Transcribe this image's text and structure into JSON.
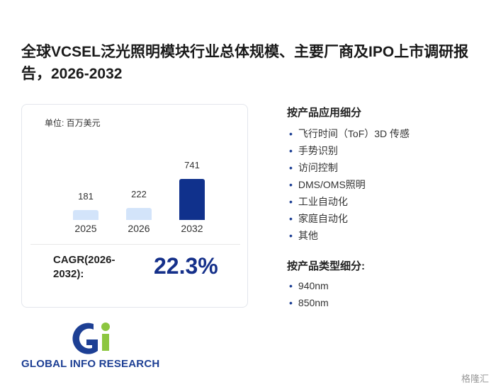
{
  "title": "全球VCSEL泛光照明模块行业总体规模、主要厂商及IPO上市调研报告，2026-2032",
  "card": {
    "unit": "单位: 百万美元",
    "chart": {
      "type": "bar",
      "categories": [
        "2025",
        "2026",
        "2032"
      ],
      "values": [
        181,
        222,
        741
      ],
      "colors": [
        "#d3e4fa",
        "#d3e4fa",
        "#10318c"
      ]
    },
    "cagr_label": "CAGR(2026-2032):",
    "cagr_value": "22.3%"
  },
  "sections": [
    {
      "heading": "按产品应用细分",
      "items": [
        "飞行时间（ToF）3D 传感",
        "手势识别",
        "访问控制",
        "DMS/OMS照明",
        "工业自动化",
        "家庭自动化",
        "其他"
      ]
    },
    {
      "heading": "按产品类型细分:",
      "items": [
        "940nm",
        "850nm"
      ]
    }
  ],
  "logo_text": "GLOBAL INFO RESEARCH",
  "watermark_source": "格隆汇"
}
